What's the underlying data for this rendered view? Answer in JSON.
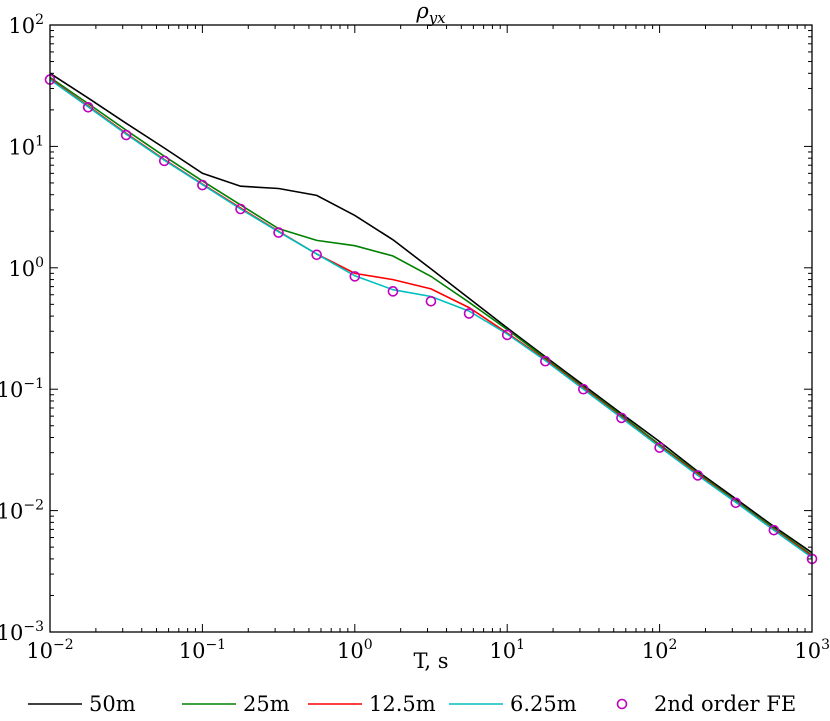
{
  "chart_data": {
    "type": "line",
    "title": "ρyx",
    "xlabel": "T, s",
    "ylabel": "",
    "xscale": "log",
    "yscale": "log",
    "xlim": [
      0.01,
      1000
    ],
    "ylim": [
      0.001,
      100
    ],
    "grid": false,
    "legend_position": "bottom",
    "x_ticks": [
      {
        "value": 0.01,
        "base": "10",
        "exp": "−2"
      },
      {
        "value": 0.1,
        "base": "10",
        "exp": "−1"
      },
      {
        "value": 1,
        "base": "10",
        "exp": "0"
      },
      {
        "value": 10,
        "base": "10",
        "exp": "1"
      },
      {
        "value": 100,
        "base": "10",
        "exp": "2"
      },
      {
        "value": 1000,
        "base": "10",
        "exp": "3"
      }
    ],
    "y_ticks": [
      {
        "value": 0.001,
        "base": "10",
        "exp": "−3"
      },
      {
        "value": 0.01,
        "base": "10",
        "exp": "−2"
      },
      {
        "value": 0.1,
        "base": "10",
        "exp": "−1"
      },
      {
        "value": 1,
        "base": "10",
        "exp": "0"
      },
      {
        "value": 10,
        "base": "10",
        "exp": "1"
      },
      {
        "value": 100,
        "base": "10",
        "exp": "2"
      }
    ],
    "series": [
      {
        "name": "50m",
        "kind": "line",
        "color": "#000000",
        "x": [
          0.01,
          0.0178,
          0.0316,
          0.0562,
          0.1,
          0.178,
          0.316,
          0.562,
          1.0,
          1.78,
          3.16,
          5.62,
          10,
          17.8,
          31.6,
          56.2,
          100,
          178,
          316,
          562,
          1000
        ],
        "y": [
          40,
          25,
          15.5,
          9.7,
          6.0,
          4.7,
          4.5,
          3.95,
          2.7,
          1.7,
          0.98,
          0.56,
          0.32,
          0.185,
          0.108,
          0.063,
          0.037,
          0.021,
          0.0125,
          0.0074,
          0.0045
        ]
      },
      {
        "name": "25m",
        "kind": "line",
        "color": "#008000",
        "x": [
          0.01,
          0.0178,
          0.0316,
          0.0562,
          0.1,
          0.178,
          0.316,
          0.562,
          1.0,
          1.78,
          3.16,
          5.62,
          10,
          17.8,
          31.6,
          56.2,
          100,
          178,
          316,
          562,
          1000
        ],
        "y": [
          37,
          22.5,
          13.6,
          8.3,
          5.2,
          3.3,
          2.1,
          1.68,
          1.52,
          1.25,
          0.85,
          0.52,
          0.31,
          0.18,
          0.104,
          0.061,
          0.035,
          0.0205,
          0.012,
          0.0072,
          0.0043
        ]
      },
      {
        "name": "12.5m",
        "kind": "line",
        "color": "#ff0000",
        "x": [
          0.01,
          0.0178,
          0.0316,
          0.0562,
          0.1,
          0.178,
          0.316,
          0.562,
          1.0,
          1.78,
          3.16,
          5.62,
          10,
          17.8,
          31.6,
          56.2,
          100,
          178,
          316,
          562,
          1000
        ],
        "y": [
          36,
          21.5,
          12.8,
          7.8,
          4.9,
          3.1,
          2.0,
          1.3,
          0.9,
          0.8,
          0.67,
          0.47,
          0.29,
          0.175,
          0.102,
          0.059,
          0.034,
          0.02,
          0.0118,
          0.007,
          0.0042
        ]
      },
      {
        "name": "6.25m",
        "kind": "line",
        "color": "#00bfbf",
        "x": [
          0.01,
          0.0178,
          0.0316,
          0.0562,
          0.1,
          0.178,
          0.316,
          0.562,
          1.0,
          1.78,
          3.16,
          5.62,
          10,
          17.8,
          31.6,
          56.2,
          100,
          178,
          316,
          562,
          1000
        ],
        "y": [
          35.5,
          21.2,
          12.6,
          7.7,
          4.85,
          3.05,
          1.98,
          1.3,
          0.86,
          0.66,
          0.58,
          0.44,
          0.285,
          0.172,
          0.1,
          0.058,
          0.0335,
          0.0195,
          0.0117,
          0.0069,
          0.0041
        ]
      },
      {
        "name": "2nd order FE",
        "kind": "scatter",
        "color": "#bf00bf",
        "x": [
          0.01,
          0.0178,
          0.0316,
          0.0562,
          0.1,
          0.178,
          0.316,
          0.562,
          1.0,
          1.78,
          3.16,
          5.62,
          10,
          17.8,
          31.6,
          56.2,
          100,
          178,
          316,
          562,
          1000
        ],
        "y": [
          35.5,
          21,
          12.4,
          7.6,
          4.8,
          3.05,
          1.95,
          1.28,
          0.85,
          0.64,
          0.53,
          0.42,
          0.28,
          0.17,
          0.1,
          0.058,
          0.033,
          0.0195,
          0.0116,
          0.0069,
          0.004
        ]
      }
    ]
  }
}
